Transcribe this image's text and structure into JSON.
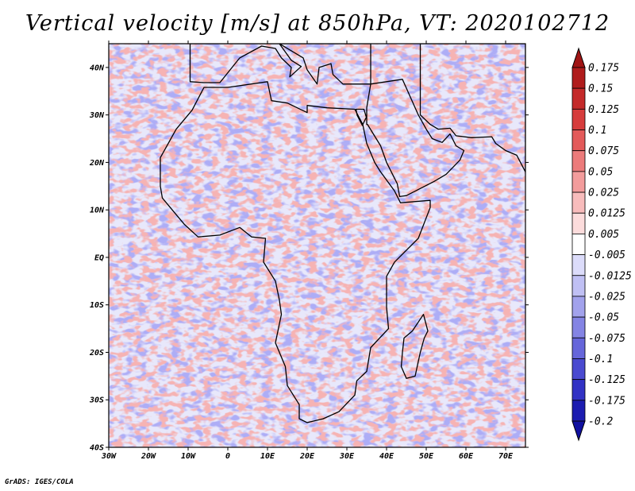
{
  "title": "Vertical velocity [m/s] at 850hPa, VT: 2020102712",
  "credit": "GrADS: IGES/COLA",
  "map": {
    "lon_range": [
      -30,
      75
    ],
    "lat_range": [
      -40,
      45
    ],
    "lat_ticks": [
      {
        "value": 40,
        "label": "40N"
      },
      {
        "value": 30,
        "label": "30N"
      },
      {
        "value": 20,
        "label": "20N"
      },
      {
        "value": 10,
        "label": "10N"
      },
      {
        "value": 0,
        "label": "EQ"
      },
      {
        "value": -10,
        "label": "10S"
      },
      {
        "value": -20,
        "label": "20S"
      },
      {
        "value": -30,
        "label": "30S"
      },
      {
        "value": -40,
        "label": "40S"
      }
    ],
    "lon_ticks": [
      {
        "value": -30,
        "label": "30W"
      },
      {
        "value": -20,
        "label": "20W"
      },
      {
        "value": -10,
        "label": "10W"
      },
      {
        "value": 0,
        "label": "0"
      },
      {
        "value": 10,
        "label": "10E"
      },
      {
        "value": 20,
        "label": "20E"
      },
      {
        "value": 30,
        "label": "30E"
      },
      {
        "value": 40,
        "label": "40E"
      },
      {
        "value": 50,
        "label": "50E"
      },
      {
        "value": 60,
        "label": "60E"
      },
      {
        "value": 70,
        "label": "70E"
      }
    ]
  },
  "colorbar": {
    "labels": [
      "0.175",
      "0.15",
      "0.125",
      "0.1",
      "0.075",
      "0.05",
      "0.025",
      "0.0125",
      "0.005",
      "-0.005",
      "-0.0125",
      "-0.025",
      "-0.05",
      "-0.075",
      "-0.1",
      "-0.125",
      "-0.175",
      "-0.2"
    ],
    "colors": [
      "#b01c1c",
      "#c42a2a",
      "#d63c3c",
      "#e35a5a",
      "#ec7b7b",
      "#f39c9c",
      "#f8bcbc",
      "#fcdcdc",
      "#ffffff",
      "#dcdcfa",
      "#c0c0f4",
      "#a2a2ec",
      "#8484e4",
      "#6666da",
      "#4a4ad0",
      "#3232c4",
      "#1c1cb0"
    ],
    "over_color": "#a01414",
    "under_color": "#1010a0"
  },
  "colors": {
    "outline": "#000000",
    "positive": "#e06060",
    "negative": "#6a6ae0"
  }
}
